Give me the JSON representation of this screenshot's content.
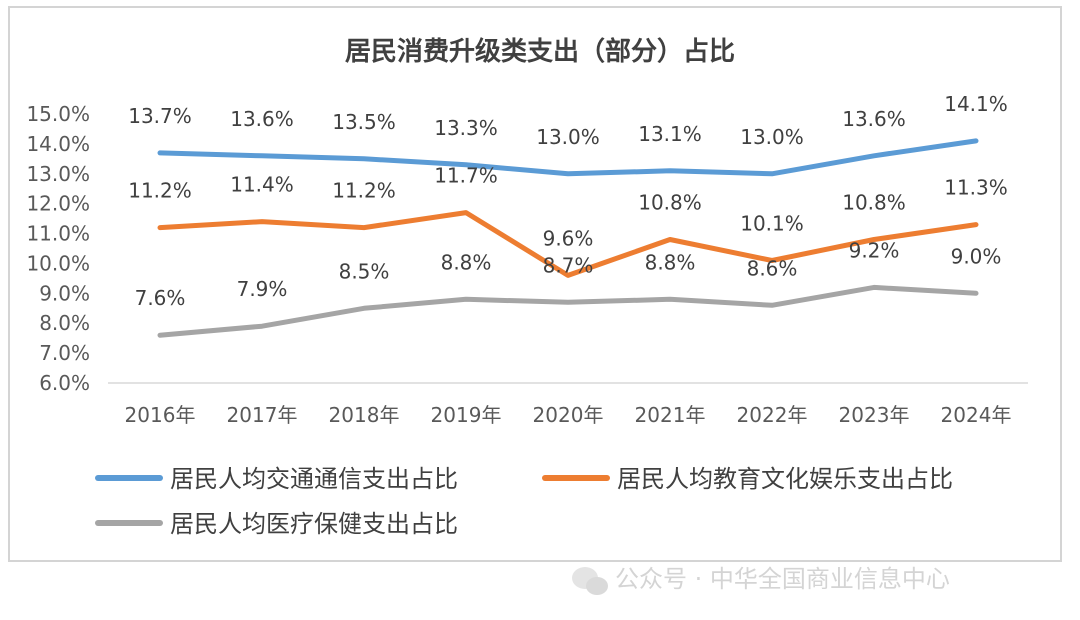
{
  "chart_data": {
    "type": "line",
    "title": "居民消费升级类支出（部分）占比",
    "categories": [
      "2016年",
      "2017年",
      "2018年",
      "2019年",
      "2020年",
      "2021年",
      "2022年",
      "2023年",
      "2024年"
    ],
    "y_ticks": [
      "15.0%",
      "14.0%",
      "13.0%",
      "12.0%",
      "11.0%",
      "10.0%",
      "9.0%",
      "8.0%",
      "7.0%",
      "6.0%"
    ],
    "ylim": [
      6.0,
      15.0
    ],
    "legend_position": "bottom",
    "series": [
      {
        "name": "居民人均交通通信支出占比",
        "color": "#5B9BD5",
        "values": [
          13.7,
          13.6,
          13.5,
          13.3,
          13.0,
          13.1,
          13.0,
          13.6,
          14.1
        ],
        "labels": [
          "13.7%",
          "13.6%",
          "13.5%",
          "13.3%",
          "13.0%",
          "13.1%",
          "13.0%",
          "13.6%",
          "14.1%"
        ]
      },
      {
        "name": "居民人均教育文化娱乐支出占比",
        "color": "#ED7D31",
        "values": [
          11.2,
          11.4,
          11.2,
          11.7,
          9.6,
          10.8,
          10.1,
          10.8,
          11.3
        ],
        "labels": [
          "11.2%",
          "11.4%",
          "11.2%",
          "11.7%",
          "9.6%",
          "10.8%",
          "10.1%",
          "10.8%",
          "11.3%"
        ]
      },
      {
        "name": "居民人均医疗保健支出占比",
        "color": "#A5A5A5",
        "values": [
          7.6,
          7.9,
          8.5,
          8.8,
          8.7,
          8.8,
          8.6,
          9.2,
          9.0
        ],
        "labels": [
          "7.6%",
          "7.9%",
          "8.5%",
          "8.8%",
          "8.7%",
          "8.8%",
          "8.6%",
          "9.2%",
          "9.0%"
        ]
      }
    ]
  },
  "watermark": "公众号 · 中华全国商业信息中心"
}
